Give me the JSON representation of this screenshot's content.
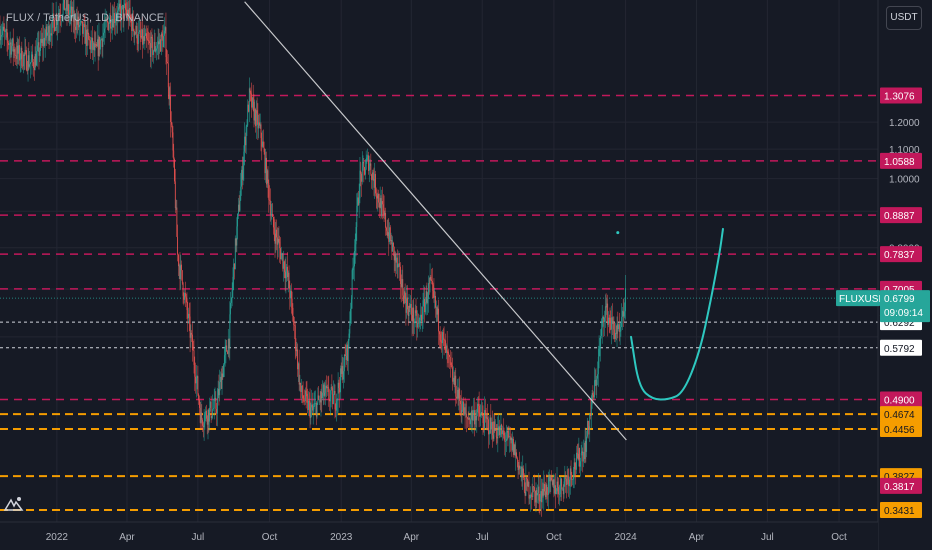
{
  "header": {
    "title": "FLUX / TetherUS, 1D, BINANCE"
  },
  "currency_button": "USDT",
  "ticker_badge": {
    "symbol": "FLUXUSDT",
    "price": "0.6799",
    "countdown": "09:09:14",
    "color": "#26a69a"
  },
  "colors": {
    "background": "#161a25",
    "grid": "#232632",
    "up": "#26a69a",
    "down": "#ef5350",
    "resistance": "#c2185b",
    "support": "#f59d00",
    "trendline": "#c8c9cc",
    "projection": "#2ec8c0",
    "white_level": "#d1d4dc"
  },
  "chart_data": {
    "type": "candlestick",
    "title": "FLUX / TetherUS, 1D, BINANCE",
    "y_scale": "log",
    "ylim": [
      0.33,
      1.78
    ],
    "xlim": [
      "2021-10-20",
      "2024-11-20"
    ],
    "x_ticks": [
      {
        "date": "2022-01-01",
        "label": "2022"
      },
      {
        "date": "2022-04-01",
        "label": "Apr"
      },
      {
        "date": "2022-07-01",
        "label": "Jul"
      },
      {
        "date": "2022-10-01",
        "label": "Oct"
      },
      {
        "date": "2023-01-01",
        "label": "2023"
      },
      {
        "date": "2023-04-01",
        "label": "Apr"
      },
      {
        "date": "2023-07-01",
        "label": "Jul"
      },
      {
        "date": "2023-10-01",
        "label": "Oct"
      },
      {
        "date": "2024-01-01",
        "label": "2024"
      },
      {
        "date": "2024-04-01",
        "label": "Apr"
      },
      {
        "date": "2024-07-01",
        "label": "Jul"
      },
      {
        "date": "2024-10-01",
        "label": "Oct"
      }
    ],
    "y_ticks": [
      {
        "value": 1.2,
        "label": "1.2000"
      },
      {
        "value": 1.1,
        "label": "1.1000"
      },
      {
        "value": 1.0,
        "label": "1.0000"
      },
      {
        "value": 0.9,
        "label": "0.9000"
      },
      {
        "value": 0.8,
        "label": "0.8000"
      }
    ],
    "price_path": [
      [
        "2021-10-20",
        1.62
      ],
      [
        "2021-11-10",
        1.5
      ],
      [
        "2021-12-01",
        1.45
      ],
      [
        "2021-12-20",
        1.6
      ],
      [
        "2022-01-10",
        1.75
      ],
      [
        "2022-02-01",
        1.62
      ],
      [
        "2022-02-20",
        1.5
      ],
      [
        "2022-03-10",
        1.68
      ],
      [
        "2022-03-31",
        1.72
      ],
      [
        "2022-04-15",
        1.58
      ],
      [
        "2022-05-05",
        1.52
      ],
      [
        "2022-05-20",
        1.58
      ],
      [
        "2022-06-05",
        0.78
      ],
      [
        "2022-06-20",
        0.62
      ],
      [
        "2022-07-05",
        0.46
      ],
      [
        "2022-07-25",
        0.48
      ],
      [
        "2022-08-10",
        0.6
      ],
      [
        "2022-08-25",
        0.97
      ],
      [
        "2022-09-05",
        1.3
      ],
      [
        "2022-09-20",
        1.15
      ],
      [
        "2022-10-05",
        0.86
      ],
      [
        "2022-10-25",
        0.72
      ],
      [
        "2022-11-10",
        0.5
      ],
      [
        "2022-11-25",
        0.47
      ],
      [
        "2022-12-10",
        0.5
      ],
      [
        "2022-12-25",
        0.49
      ],
      [
        "2023-01-10",
        0.58
      ],
      [
        "2023-01-25",
        1.0
      ],
      [
        "2023-02-05",
        1.06
      ],
      [
        "2023-02-20",
        0.92
      ],
      [
        "2023-03-10",
        0.78
      ],
      [
        "2023-03-25",
        0.67
      ],
      [
        "2023-04-10",
        0.62
      ],
      [
        "2023-04-25",
        0.71
      ],
      [
        "2023-05-10",
        0.6
      ],
      [
        "2023-05-25",
        0.52
      ],
      [
        "2023-06-10",
        0.46
      ],
      [
        "2023-06-25",
        0.47
      ],
      [
        "2023-07-10",
        0.45
      ],
      [
        "2023-07-25",
        0.44
      ],
      [
        "2023-08-10",
        0.42
      ],
      [
        "2023-08-25",
        0.37
      ],
      [
        "2023-09-10",
        0.36
      ],
      [
        "2023-09-25",
        0.37
      ],
      [
        "2023-10-10",
        0.37
      ],
      [
        "2023-10-25",
        0.39
      ],
      [
        "2023-11-10",
        0.42
      ],
      [
        "2023-11-25",
        0.53
      ],
      [
        "2023-12-05",
        0.66
      ],
      [
        "2023-12-15",
        0.62
      ],
      [
        "2023-12-25",
        0.6
      ],
      [
        "2024-01-01",
        0.68
      ]
    ],
    "series": [
      {
        "name": "0.6799",
        "value": 0.6799,
        "style": "ticker",
        "color": "#26a69a"
      }
    ],
    "horizontal_levels": [
      {
        "value": 1.3076,
        "label": "1.3076",
        "style": "resistance"
      },
      {
        "value": 1.0588,
        "label": "1.0588",
        "style": "resistance"
      },
      {
        "value": 0.8887,
        "label": "0.8887",
        "style": "resistance"
      },
      {
        "value": 0.7837,
        "label": "0.7837",
        "style": "resistance"
      },
      {
        "value": 0.7005,
        "label": "0.7005",
        "style": "resistance"
      },
      {
        "value": 0.6292,
        "label": "0.6292",
        "style": "white"
      },
      {
        "value": 0.5792,
        "label": "0.5792",
        "style": "white"
      },
      {
        "value": 0.49,
        "label": "0.4900",
        "style": "resistance"
      },
      {
        "value": 0.4674,
        "label": "0.4674",
        "style": "support"
      },
      {
        "value": 0.4456,
        "label": "0.4456",
        "style": "support"
      },
      {
        "value": 0.3827,
        "label": "0.3827",
        "style": "support"
      },
      {
        "value": 0.3817,
        "label": "0.3817",
        "style": "support_bg"
      },
      {
        "value": 0.3431,
        "label": "0.3431",
        "style": "support"
      }
    ],
    "trendline": {
      "start": [
        "2022-08-30",
        1.77
      ],
      "end": [
        "2024-01-02",
        0.43
      ]
    },
    "projection_path": [
      [
        "2024-01-08",
        0.6
      ],
      [
        "2024-01-18",
        0.51
      ],
      [
        "2024-02-05",
        0.49
      ],
      [
        "2024-02-25",
        0.49
      ],
      [
        "2024-03-15",
        0.5
      ],
      [
        "2024-04-05",
        0.57
      ],
      [
        "2024-04-20",
        0.68
      ],
      [
        "2024-05-01",
        0.79
      ],
      [
        "2024-05-05",
        0.85
      ]
    ],
    "projection_dot": [
      "2023-12-22",
      0.84
    ],
    "grid": true
  }
}
